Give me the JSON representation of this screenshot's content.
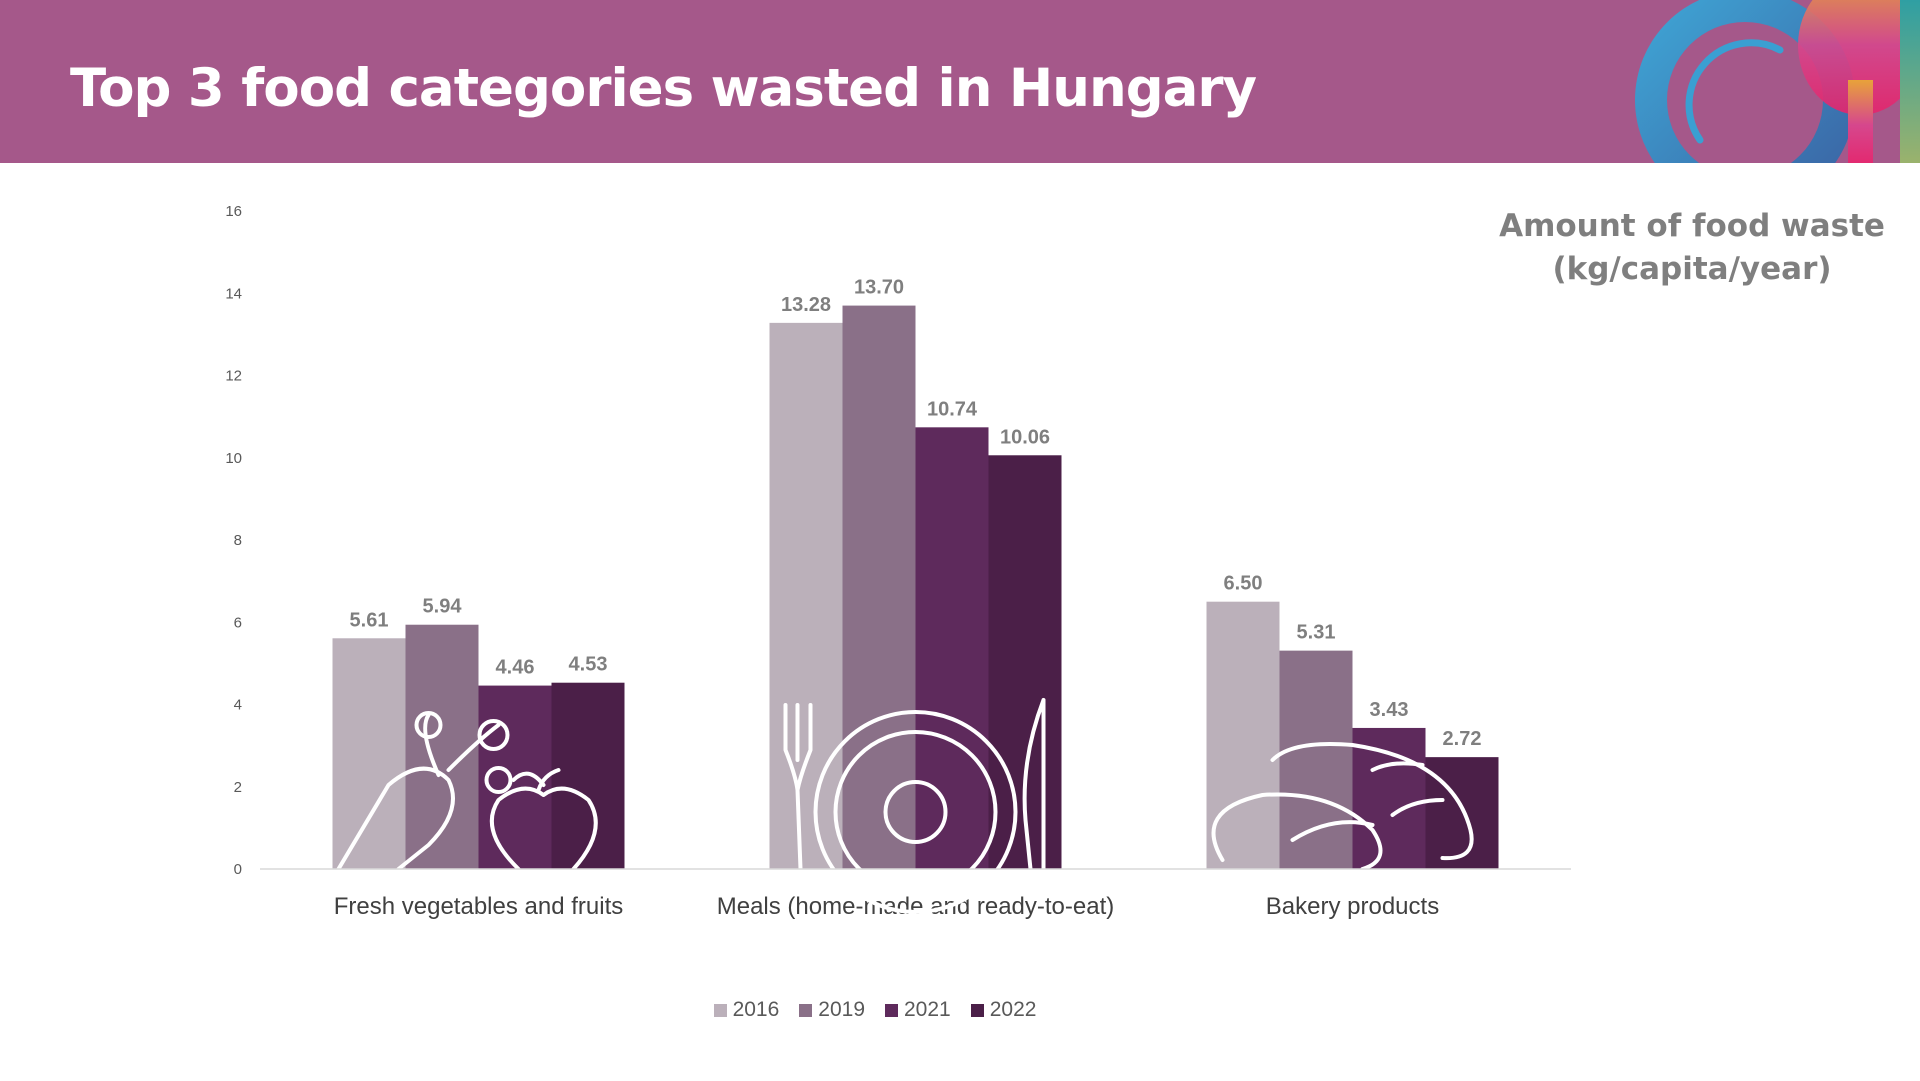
{
  "header": {
    "title": "Top 3 food categories wasted in Hungary",
    "logo": "plate-and-cutlery-logo"
  },
  "colors": {
    "header": "#a5588a",
    "2016": "#bbb0ba",
    "2019": "#8a7088",
    "2021": "#5e2a5c",
    "2022": "#4b1f48"
  },
  "chart_data": {
    "type": "bar",
    "title": "",
    "ylabel": "Amount of  food waste (kg/capita/year)",
    "ylabel_lines": [
      "Amount of  food waste",
      "(kg/capita/year)"
    ],
    "ylim": [
      0,
      16
    ],
    "yticks": [
      0,
      2,
      4,
      6,
      8,
      10,
      12,
      14,
      16
    ],
    "grid": false,
    "legend": "bottom",
    "categories": [
      "Fresh vegetables and fruits",
      "Meals (home-made and ready-to-eat)",
      "Bakery products"
    ],
    "category_icons": [
      "carrot-and-apple-icon",
      "fork-plate-knife-icon",
      "bread-loaves-icon"
    ],
    "series": [
      {
        "name": "2016",
        "values": [
          5.61,
          13.28,
          6.5
        ],
        "labels": [
          "5.61",
          "13.28",
          "6.50"
        ]
      },
      {
        "name": "2019",
        "values": [
          5.94,
          13.7,
          5.31
        ],
        "labels": [
          "5.94",
          "13.70",
          "5.31"
        ]
      },
      {
        "name": "2021",
        "values": [
          4.46,
          10.74,
          3.43
        ],
        "labels": [
          "4.46",
          "10.74",
          "3.43"
        ]
      },
      {
        "name": "2022",
        "values": [
          4.53,
          10.06,
          2.72
        ],
        "labels": [
          "4.53",
          "10.06",
          "2.72"
        ]
      }
    ]
  }
}
